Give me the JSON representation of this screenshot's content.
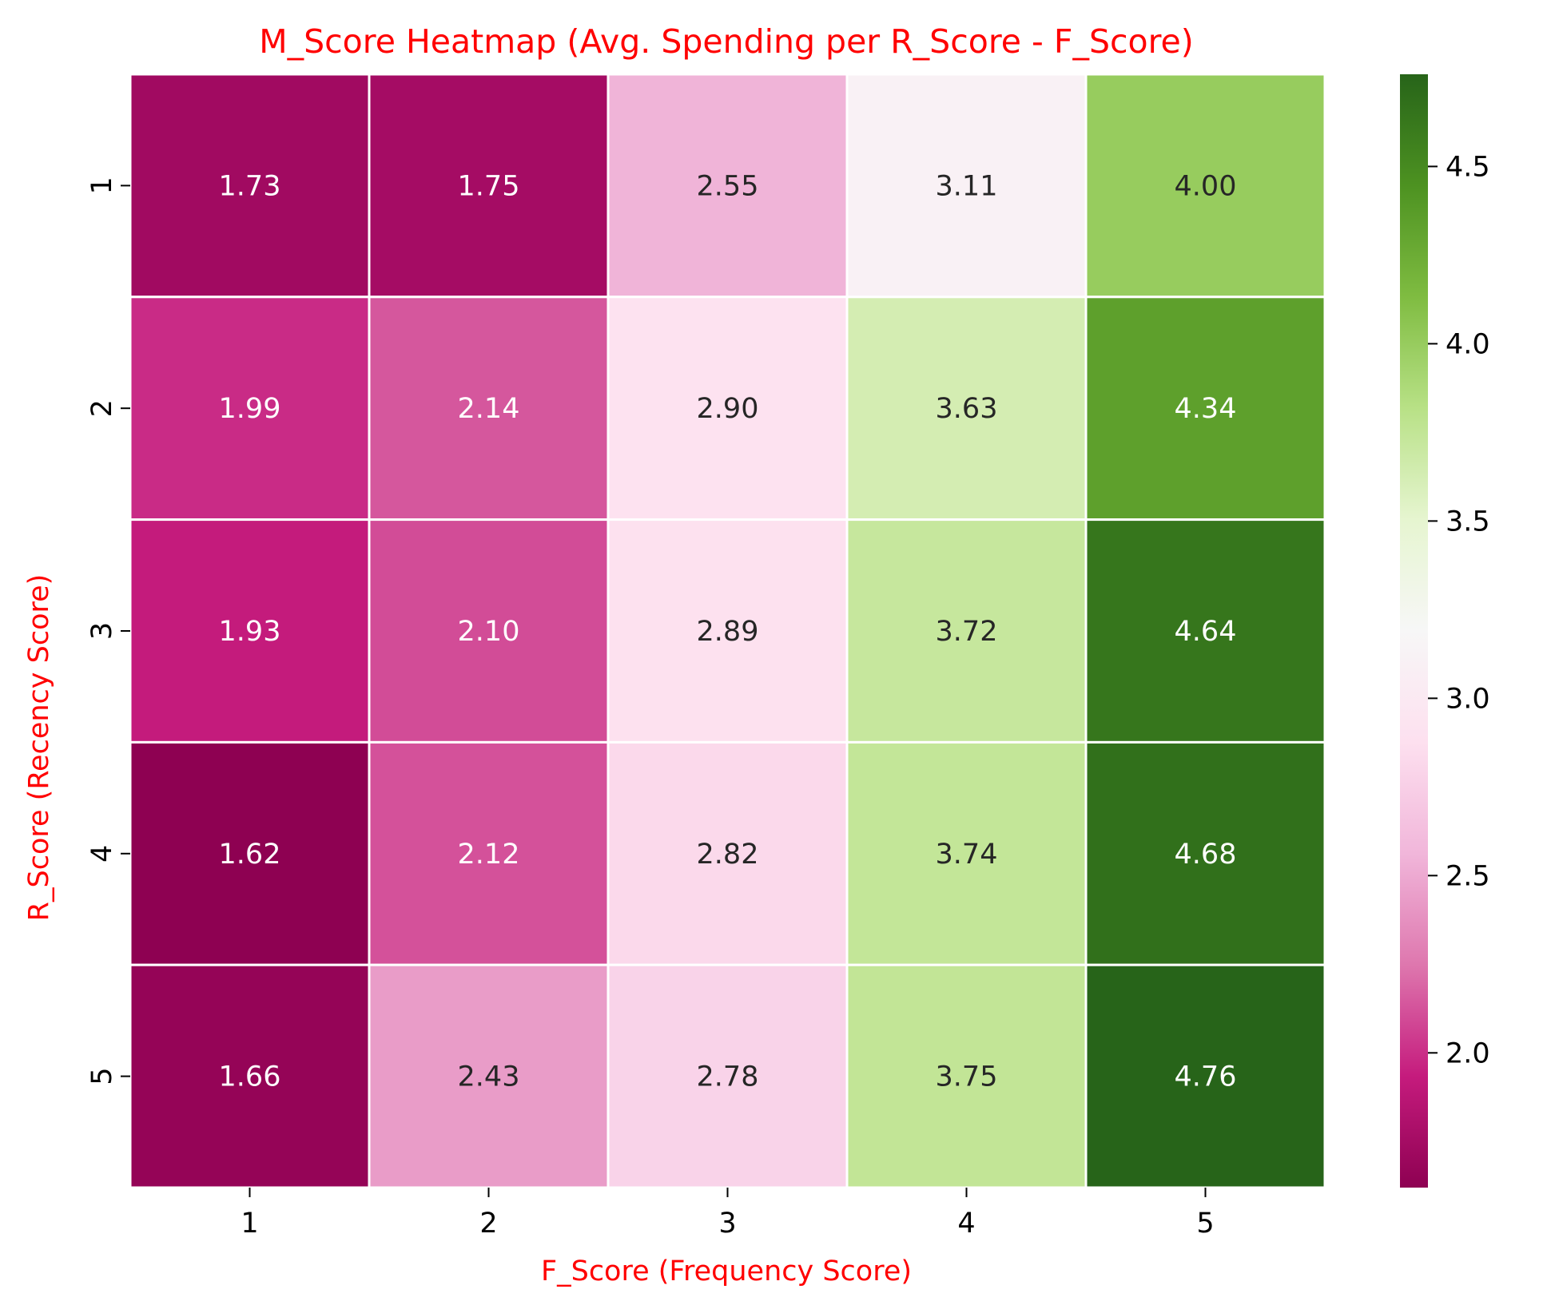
{
  "chart_data": {
    "type": "heatmap",
    "title": "M_Score Heatmap (Avg. Spending per R_Score - F_Score)",
    "xlabel": "F_Score (Frequency Score)",
    "ylabel": "R_Score (Recency Score)",
    "x_categories": [
      "1",
      "2",
      "3",
      "4",
      "5"
    ],
    "y_categories": [
      "1",
      "2",
      "3",
      "4",
      "5"
    ],
    "values": [
      [
        1.73,
        1.75,
        2.55,
        3.11,
        4.0
      ],
      [
        1.99,
        2.14,
        2.9,
        3.63,
        4.34
      ],
      [
        1.93,
        2.1,
        2.89,
        3.72,
        4.64
      ],
      [
        1.62,
        2.12,
        2.82,
        3.74,
        4.68
      ],
      [
        1.66,
        2.43,
        2.78,
        3.75,
        4.76
      ]
    ],
    "cell_labels": [
      [
        "1.73",
        "1.75",
        "2.55",
        "3.11",
        "4.00"
      ],
      [
        "1.99",
        "2.14",
        "2.90",
        "3.63",
        "4.34"
      ],
      [
        "1.93",
        "2.10",
        "2.89",
        "3.72",
        "4.64"
      ],
      [
        "1.62",
        "2.12",
        "2.82",
        "3.74",
        "4.68"
      ],
      [
        "1.66",
        "2.43",
        "2.78",
        "3.75",
        "4.76"
      ]
    ],
    "colormap": "PiYG",
    "color_range": [
      1.62,
      4.76
    ],
    "colorbar_ticks": [
      "2.0",
      "2.5",
      "3.0",
      "3.5",
      "4.0",
      "4.5"
    ],
    "colorbar_tick_values": [
      2.0,
      2.5,
      3.0,
      3.5,
      4.0,
      4.5
    ],
    "label_color": "#ff0000",
    "grid_line_color": "#ffffff",
    "light_text_color": "#ffffff",
    "dark_text_color": "#262626"
  }
}
